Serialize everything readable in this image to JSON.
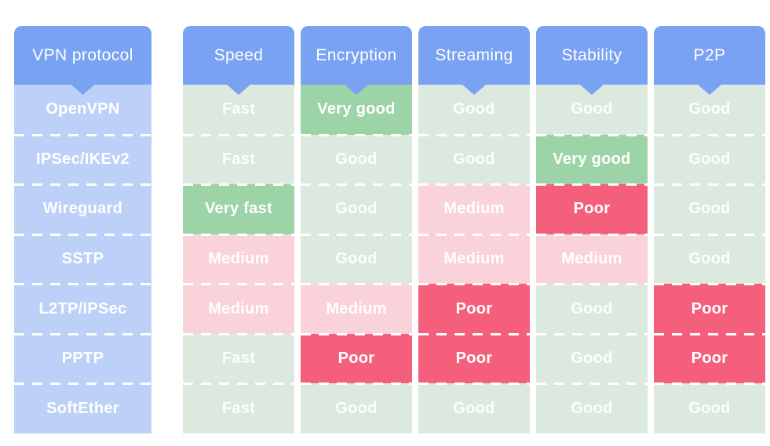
{
  "colors": {
    "header_blue": "#79a2f2",
    "protocol_blue": "#bdd0f8",
    "good_pale_green": "#dce9df",
    "verygood_green": "#9cd3a7",
    "medium_pink": "#fad2da",
    "poor_red": "#f4607c",
    "cell_text": "#ffffff",
    "page_bg": "#ffffff"
  },
  "table": {
    "columns": [
      {
        "header": "VPN protocol",
        "cells": [
          {
            "label": "OpenVPN",
            "tone": "protocol"
          },
          {
            "label": "IPSec/IKEv2",
            "tone": "protocol"
          },
          {
            "label": "Wireguard",
            "tone": "protocol"
          },
          {
            "label": "SSTP",
            "tone": "protocol"
          },
          {
            "label": "L2TP/IPSec",
            "tone": "protocol"
          },
          {
            "label": "PPTP",
            "tone": "protocol"
          },
          {
            "label": "SoftEther",
            "tone": "protocol"
          }
        ]
      },
      {
        "header": "Speed",
        "cells": [
          {
            "label": "Fast",
            "tone": "good"
          },
          {
            "label": "Fast",
            "tone": "good"
          },
          {
            "label": "Very fast",
            "tone": "verygood"
          },
          {
            "label": "Medium",
            "tone": "medium"
          },
          {
            "label": "Medium",
            "tone": "medium"
          },
          {
            "label": "Fast",
            "tone": "good"
          },
          {
            "label": "Fast",
            "tone": "good"
          }
        ]
      },
      {
        "header": "Encryption",
        "cells": [
          {
            "label": "Very good",
            "tone": "verygood"
          },
          {
            "label": "Good",
            "tone": "good"
          },
          {
            "label": "Good",
            "tone": "good"
          },
          {
            "label": "Good",
            "tone": "good"
          },
          {
            "label": "Medium",
            "tone": "medium"
          },
          {
            "label": "Poor",
            "tone": "poor"
          },
          {
            "label": "Good",
            "tone": "good"
          }
        ]
      },
      {
        "header": "Streaming",
        "cells": [
          {
            "label": "Good",
            "tone": "good"
          },
          {
            "label": "Good",
            "tone": "good"
          },
          {
            "label": "Medium",
            "tone": "medium"
          },
          {
            "label": "Medium",
            "tone": "medium"
          },
          {
            "label": "Poor",
            "tone": "poor"
          },
          {
            "label": "Poor",
            "tone": "poor"
          },
          {
            "label": "Good",
            "tone": "good"
          }
        ]
      },
      {
        "header": "Stability",
        "cells": [
          {
            "label": "Good",
            "tone": "good"
          },
          {
            "label": "Very good",
            "tone": "verygood"
          },
          {
            "label": "Poor",
            "tone": "poor"
          },
          {
            "label": "Medium",
            "tone": "medium"
          },
          {
            "label": "Good",
            "tone": "good"
          },
          {
            "label": "Good",
            "tone": "good"
          },
          {
            "label": "Good",
            "tone": "good"
          }
        ]
      },
      {
        "header": "P2P",
        "cells": [
          {
            "label": "Good",
            "tone": "good"
          },
          {
            "label": "Good",
            "tone": "good"
          },
          {
            "label": "Good",
            "tone": "good"
          },
          {
            "label": "Good",
            "tone": "good"
          },
          {
            "label": "Poor",
            "tone": "poor"
          },
          {
            "label": "Poor",
            "tone": "poor"
          },
          {
            "label": "Good",
            "tone": "good"
          }
        ]
      }
    ]
  },
  "chart_data": {
    "type": "table",
    "row_header_label": "VPN protocol",
    "rows": [
      "OpenVPN",
      "IPSec/IKEv2",
      "Wireguard",
      "SSTP",
      "L2TP/IPSec",
      "PPTP",
      "SoftEther"
    ],
    "columns": [
      "Speed",
      "Encryption",
      "Streaming",
      "Stability",
      "P2P"
    ],
    "values": [
      [
        "Fast",
        "Very good",
        "Good",
        "Good",
        "Good"
      ],
      [
        "Fast",
        "Good",
        "Good",
        "Very good",
        "Good"
      ],
      [
        "Very fast",
        "Good",
        "Medium",
        "Poor",
        "Good"
      ],
      [
        "Medium",
        "Good",
        "Medium",
        "Medium",
        "Good"
      ],
      [
        "Medium",
        "Medium",
        "Poor",
        "Good",
        "Poor"
      ],
      [
        "Fast",
        "Poor",
        "Poor",
        "Good",
        "Poor"
      ],
      [
        "Fast",
        "Good",
        "Good",
        "Good",
        "Good"
      ]
    ],
    "value_color_coding": {
      "Very good": "#9cd3a7",
      "Very fast": "#9cd3a7",
      "Good": "#dce9df",
      "Fast": "#dce9df",
      "Medium": "#fad2da",
      "Poor": "#f4607c"
    },
    "layout_hints": {
      "orientation": "columns side-by-side with blue headers and notch pointers",
      "row_separators": "white dashed lines",
      "grid": "off"
    }
  }
}
